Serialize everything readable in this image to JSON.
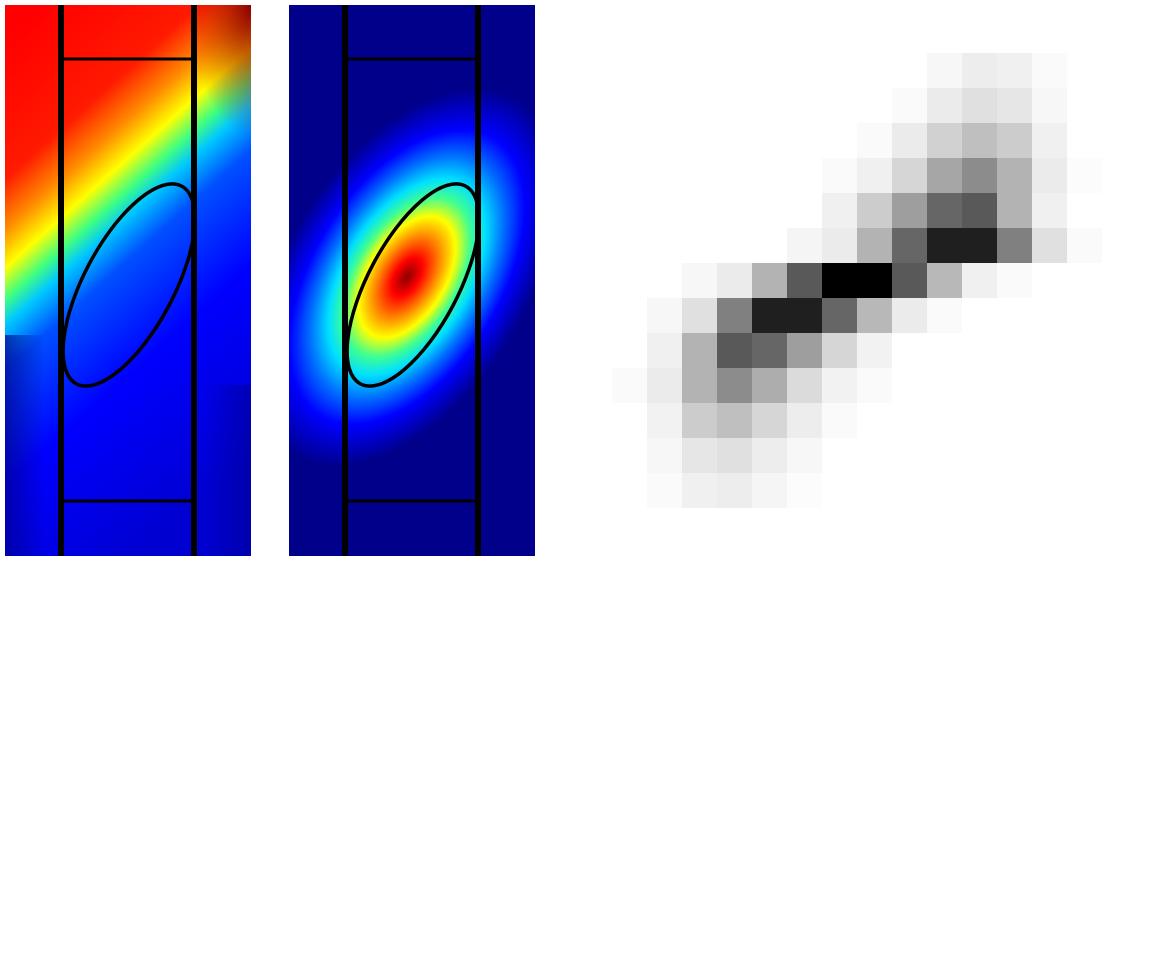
{
  "figure": {
    "panels": [
      {
        "id": "phase-map",
        "kind": "jet colormap field with waveguide outline"
      },
      {
        "id": "amplitude-map",
        "kind": "jet colormap field with waveguide outline"
      },
      {
        "id": "pixel-grid",
        "kind": "grayscale intensity grid"
      }
    ],
    "colormap": "jet",
    "outline_color": "#000000"
  },
  "pixel_grid": {
    "columns": 14,
    "rows": 15,
    "cell_intensity": [
      [
        0,
        0,
        0,
        0,
        0,
        0,
        0,
        0,
        0,
        0,
        0,
        0,
        0,
        0
      ],
      [
        0,
        0,
        0,
        0,
        0,
        0,
        0,
        0,
        0,
        0.03,
        0.07,
        0.06,
        0.02,
        0
      ],
      [
        0,
        0,
        0,
        0,
        0,
        0,
        0,
        0,
        0.02,
        0.08,
        0.12,
        0.1,
        0.03,
        0
      ],
      [
        0,
        0,
        0,
        0,
        0,
        0,
        0,
        0.02,
        0.08,
        0.18,
        0.25,
        0.2,
        0.06,
        0
      ],
      [
        0,
        0,
        0,
        0,
        0,
        0,
        0.02,
        0.06,
        0.16,
        0.35,
        0.45,
        0.3,
        0.08,
        0.01
      ],
      [
        0,
        0,
        0,
        0,
        0,
        0,
        0.06,
        0.2,
        0.38,
        0.6,
        0.65,
        0.3,
        0.06,
        0
      ],
      [
        0,
        0,
        0,
        0,
        0,
        0.04,
        0.08,
        0.3,
        0.6,
        0.88,
        0.88,
        0.5,
        0.12,
        0.02
      ],
      [
        0,
        0,
        0.03,
        0.08,
        0.3,
        0.65,
        1.0,
        1.0,
        0.65,
        0.28,
        0.06,
        0.02,
        0,
        0
      ],
      [
        0,
        0.03,
        0.12,
        0.5,
        0.88,
        0.88,
        0.6,
        0.28,
        0.08,
        0.02,
        0,
        0,
        0,
        0
      ],
      [
        0,
        0.06,
        0.3,
        0.65,
        0.6,
        0.38,
        0.16,
        0.05,
        0,
        0,
        0,
        0,
        0,
        0
      ],
      [
        0.02,
        0.08,
        0.3,
        0.45,
        0.32,
        0.14,
        0.05,
        0.02,
        0,
        0,
        0,
        0,
        0,
        0
      ],
      [
        0,
        0.05,
        0.2,
        0.25,
        0.16,
        0.07,
        0.02,
        0,
        0,
        0,
        0,
        0,
        0,
        0
      ],
      [
        0,
        0.03,
        0.1,
        0.12,
        0.07,
        0.03,
        0,
        0,
        0,
        0,
        0,
        0,
        0,
        0
      ],
      [
        0,
        0.02,
        0.06,
        0.07,
        0.04,
        0.01,
        0,
        0,
        0,
        0,
        0,
        0,
        0,
        0
      ],
      [
        0,
        0,
        0,
        0,
        0,
        0,
        0,
        0,
        0,
        0,
        0,
        0,
        0,
        0
      ]
    ]
  }
}
